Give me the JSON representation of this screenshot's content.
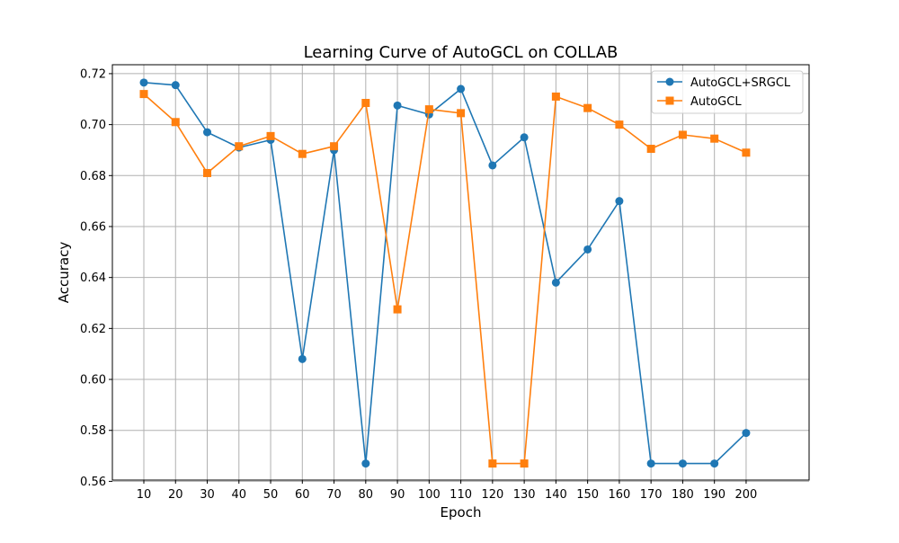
{
  "chart_data": {
    "type": "line",
    "title": "Learning Curve of AutoGCL on COLLAB",
    "xlabel": "Epoch",
    "ylabel": "Accuracy",
    "x": [
      10,
      20,
      30,
      40,
      50,
      60,
      70,
      80,
      90,
      100,
      110,
      120,
      130,
      140,
      150,
      160,
      170,
      180,
      190,
      200
    ],
    "x_tick_labels": [
      "10",
      "20",
      "30",
      "40",
      "50",
      "60",
      "70",
      "80",
      "90",
      "100",
      "110",
      "120",
      "130",
      "140",
      "150",
      "160",
      "170",
      "180",
      "190",
      "200"
    ],
    "y_tick_labels": [
      "0.56",
      "0.58",
      "0.60",
      "0.62",
      "0.64",
      "0.66",
      "0.68",
      "0.70",
      "0.72"
    ],
    "y_ticks": [
      0.56,
      0.58,
      0.6,
      0.62,
      0.64,
      0.66,
      0.68,
      0.7,
      0.72
    ],
    "ylim": [
      0.5605,
      0.7235
    ],
    "grid": true,
    "legend_position": "top-right",
    "series": [
      {
        "name": "AutoGCL+SRGCL",
        "color": "#1f77b4",
        "marker": "circle",
        "values": [
          0.7165,
          0.7155,
          0.697,
          0.691,
          0.694,
          0.608,
          0.69,
          0.567,
          0.7075,
          0.704,
          0.714,
          0.684,
          0.695,
          0.638,
          0.651,
          0.67,
          0.567,
          0.567,
          0.567,
          0.579
        ]
      },
      {
        "name": "AutoGCL",
        "color": "#ff7f0e",
        "marker": "square",
        "values": [
          0.712,
          0.701,
          0.681,
          0.6915,
          0.6955,
          0.6885,
          0.6915,
          0.7085,
          0.6275,
          0.706,
          0.7045,
          0.567,
          0.567,
          0.711,
          0.7065,
          0.7,
          0.6905,
          0.696,
          0.6945,
          0.689
        ]
      }
    ]
  }
}
